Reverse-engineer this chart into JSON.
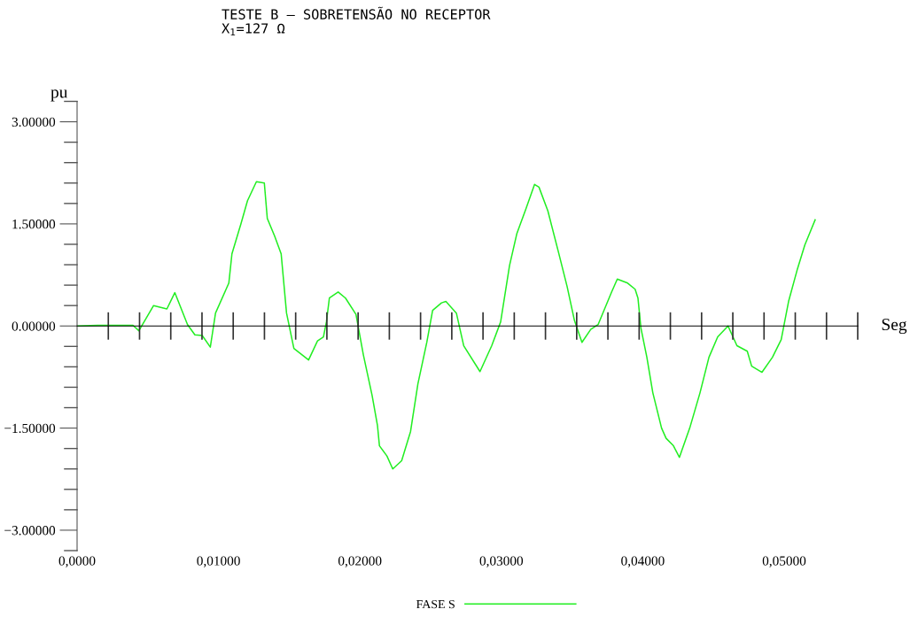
{
  "chart_data": {
    "type": "line",
    "title": "TESTE B – SOBRETENSÃO NO RECEPTOR",
    "subtitle": "X$_{1}$=127 Ω",
    "xlabel": "Seg",
    "ylabel": "pu",
    "legend": "bottom",
    "xlim": [
      0,
      0.0552
    ],
    "ylim": [
      -3.3,
      3.3
    ],
    "xticks": [
      {
        "value": 0,
        "label": "0,0000"
      },
      {
        "value": 0.01,
        "label": "0,01000"
      },
      {
        "value": 0.02,
        "label": "0,02000"
      },
      {
        "value": 0.03,
        "label": "0,03000"
      },
      {
        "value": 0.04,
        "label": "0,04000"
      },
      {
        "value": 0.05,
        "label": "0,05000"
      }
    ],
    "yticks": [
      {
        "value": -3,
        "label": "−3.00000"
      },
      {
        "value": -1.5,
        "label": "−1.50000"
      },
      {
        "value": 0,
        "label": "0.00000"
      },
      {
        "value": 1.5,
        "label": "1.50000"
      },
      {
        "value": 3,
        "label": "3.00000"
      }
    ],
    "series": [
      {
        "name": "FASE S",
        "color": "#22ee22",
        "x": [
          0,
          0.00144,
          0.00395,
          0.00437,
          0.00541,
          0.00635,
          0.00691,
          0.00781,
          0.00833,
          0.00885,
          0.00942,
          0.00979,
          0.01073,
          0.01095,
          0.01157,
          0.01205,
          0.01268,
          0.01324,
          0.01345,
          0.01397,
          0.01443,
          0.01481,
          0.01533,
          0.01637,
          0.017,
          0.01742,
          0.01763,
          0.01784,
          0.01846,
          0.01898,
          0.01972,
          0.02024,
          0.02086,
          0.02124,
          0.02138,
          0.02191,
          0.02232,
          0.02295,
          0.02358,
          0.0241,
          0.02473,
          0.02514,
          0.02577,
          0.02608,
          0.02682,
          0.02734,
          0.02849,
          0.02932,
          0.02995,
          0.03058,
          0.0311,
          0.03172,
          0.03235,
          0.03266,
          0.03329,
          0.03402,
          0.03465,
          0.03517,
          0.0357,
          0.03632,
          0.03684,
          0.03778,
          0.0382,
          0.03893,
          0.03946,
          0.03966,
          0.03987,
          0.04029,
          0.04071,
          0.04133,
          0.04165,
          0.04217,
          0.04259,
          0.04332,
          0.04405,
          0.04468,
          0.0453,
          0.04603,
          0.04666,
          0.04739,
          0.0477,
          0.04843,
          0.04917,
          0.04979,
          0.05031,
          0.05094,
          0.05146,
          0.05219
        ],
        "values": [
          0,
          0.01,
          0.01,
          -0.07,
          0.3,
          0.25,
          0.49,
          0.02,
          -0.13,
          -0.14,
          -0.31,
          0.19,
          0.63,
          1.06,
          1.49,
          1.84,
          2.12,
          2.1,
          1.58,
          1.32,
          1.06,
          0.19,
          -0.33,
          -0.5,
          -0.22,
          -0.16,
          0.06,
          0.41,
          0.5,
          0.41,
          0.17,
          -0.42,
          -1.02,
          -1.46,
          -1.76,
          -1.91,
          -2.1,
          -1.98,
          -1.55,
          -0.85,
          -0.24,
          0.23,
          0.34,
          0.36,
          0.19,
          -0.29,
          -0.67,
          -0.29,
          0.06,
          0.89,
          1.36,
          1.71,
          2.08,
          2.04,
          1.69,
          1.1,
          0.58,
          0.08,
          -0.24,
          -0.05,
          0.02,
          0.49,
          0.69,
          0.63,
          0.54,
          0.41,
          -0.03,
          -0.46,
          -0.98,
          -1.5,
          -1.65,
          -1.76,
          -1.93,
          -1.5,
          -0.98,
          -0.46,
          -0.16,
          0,
          -0.29,
          -0.37,
          -0.59,
          -0.68,
          -0.46,
          -0.2,
          0.36,
          0.84,
          1.19,
          1.56
        ]
      }
    ]
  }
}
